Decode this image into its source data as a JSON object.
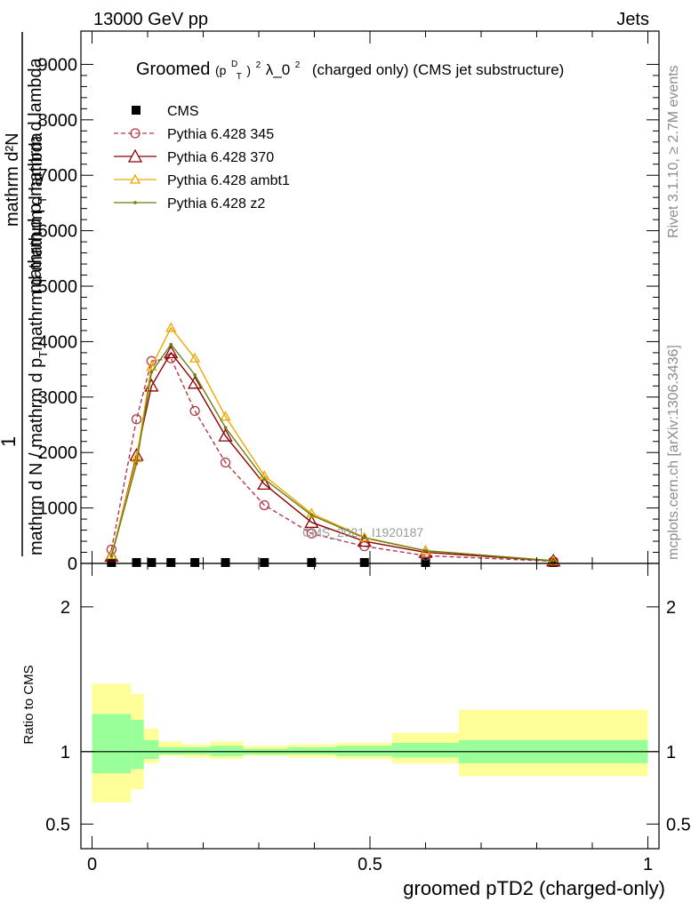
{
  "header": {
    "left": "13000 GeV pp",
    "right": "Jets"
  },
  "side_text": {
    "rivet": "Rivet 3.1.10, ≥ 2.7M events",
    "mcplots": "mcplots.cern.ch [arXiv:1306.3436]"
  },
  "watermark": "CMS_2021_I1920187",
  "chart_data": [
    {
      "type": "line",
      "title_parts": {
        "prefix": "Groomed",
        "paren_open": "(p",
        "sup_d": "D",
        "sub_t": "T",
        "paren_close": ")",
        "sup_2": "2",
        "lambda": "λ_0",
        "sup_2b": "2",
        "suffix": "(charged only) (CMS jet substructure)"
      },
      "ylabel_parts": {
        "one": "1",
        "denominator": "mathrm d N / mathrm d p",
        "denominator_sub": "T",
        "denominator_rest": "mathrm d mathrm d lambda",
        "numerator": "mathrm d²N",
        "numerator_rest": "mathrm d p",
        "numerator_sub": "T",
        "numerator_tail": "mathrm d lambda"
      },
      "xlim": [
        -0.02,
        1.02
      ],
      "ylim": [
        0,
        9600
      ],
      "yticks": [
        {
          "v": 0,
          "label": "0"
        },
        {
          "v": 1000,
          "label": "1000"
        },
        {
          "v": 2000,
          "label": "2000"
        },
        {
          "v": 3000,
          "label": "3000"
        },
        {
          "v": 4000,
          "label": "4000"
        },
        {
          "v": 5000,
          "label": "5000"
        },
        {
          "v": 6000,
          "label": "6000"
        },
        {
          "v": 7000,
          "label": "7000"
        },
        {
          "v": 8000,
          "label": "8000"
        },
        {
          "v": 9000,
          "label": "9000"
        }
      ],
      "x": [
        0.035,
        0.08,
        0.107,
        0.142,
        0.185,
        0.24,
        0.31,
        0.395,
        0.49,
        0.6,
        0.83
      ],
      "series": [
        {
          "name": "CMS",
          "color": "#000000",
          "marker": "square",
          "values": [
            0.3,
            0.3,
            0.3,
            0.3,
            0.3,
            0.3,
            0.3,
            0.3,
            0.3,
            0.3,
            0.3
          ]
        },
        {
          "name": "Pythia 6.428 345",
          "color": "#b03a48",
          "marker": "circle-open",
          "dashed": true,
          "values": [
            250,
            2600,
            3650,
            3700,
            2750,
            1820,
            1050,
            540,
            310,
            140,
            40
          ]
        },
        {
          "name": "Pythia 6.428 370",
          "color": "#8b0000",
          "marker": "triangle-open",
          "dashed": false,
          "values": [
            130,
            1950,
            3200,
            3800,
            3250,
            2300,
            1430,
            740,
            400,
            200,
            45
          ]
        },
        {
          "name": "Pythia 6.428 ambt1",
          "color": "#f0a500",
          "marker": "triangle-open",
          "dashed": false,
          "values": [
            150,
            1900,
            3550,
            4250,
            3700,
            2650,
            1580,
            900,
            470,
            230,
            48
          ]
        },
        {
          "name": "Pythia 6.428 z2",
          "color": "#6b7d12",
          "marker": "dot",
          "dashed": false,
          "values": [
            130,
            1800,
            3450,
            3950,
            3400,
            2450,
            1520,
            870,
            460,
            230,
            48
          ]
        }
      ]
    },
    {
      "type": "area",
      "ylabel": "Ratio to CMS",
      "xlabel": "groomed pTD2 (charged-only)",
      "xlim": [
        -0.02,
        1.02
      ],
      "ylim": [
        0.33,
        2.3
      ],
      "reference_line": 1,
      "xticks": [
        {
          "v": 0,
          "label": "0"
        },
        {
          "v": 0.5,
          "label": "0.5"
        },
        {
          "v": 1,
          "label": "1"
        }
      ],
      "yticks": [
        {
          "v": 0.5,
          "label": "0.5"
        },
        {
          "v": 1,
          "label": "1"
        },
        {
          "v": 2,
          "label": "2"
        }
      ],
      "bands": [
        {
          "x0": 0.0,
          "x1": 0.07,
          "inner": [
            0.85,
            1.26
          ],
          "outer": [
            0.65,
            1.47
          ]
        },
        {
          "x0": 0.07,
          "x1": 0.093,
          "inner": [
            0.88,
            1.22
          ],
          "outer": [
            0.74,
            1.4
          ]
        },
        {
          "x0": 0.093,
          "x1": 0.12,
          "inner": [
            0.95,
            1.08
          ],
          "outer": [
            0.92,
            1.16
          ]
        },
        {
          "x0": 0.12,
          "x1": 0.163,
          "inner": [
            0.98,
            1.03
          ],
          "outer": [
            0.97,
            1.07
          ]
        },
        {
          "x0": 0.163,
          "x1": 0.213,
          "inner": [
            0.98,
            1.03
          ],
          "outer": [
            0.96,
            1.05
          ]
        },
        {
          "x0": 0.213,
          "x1": 0.272,
          "inner": [
            0.97,
            1.04
          ],
          "outer": [
            0.95,
            1.07
          ]
        },
        {
          "x0": 0.272,
          "x1": 0.352,
          "inner": [
            0.98,
            1.02
          ],
          "outer": [
            0.97,
            1.04
          ]
        },
        {
          "x0": 0.352,
          "x1": 0.44,
          "inner": [
            0.98,
            1.03
          ],
          "outer": [
            0.96,
            1.05
          ]
        },
        {
          "x0": 0.44,
          "x1": 0.54,
          "inner": [
            0.97,
            1.04
          ],
          "outer": [
            0.95,
            1.06
          ]
        },
        {
          "x0": 0.54,
          "x1": 0.66,
          "inner": [
            0.96,
            1.06
          ],
          "outer": [
            0.92,
            1.13
          ]
        },
        {
          "x0": 0.66,
          "x1": 1.0,
          "inner": [
            0.92,
            1.08
          ],
          "outer": [
            0.83,
            1.29
          ]
        }
      ],
      "band_colors": {
        "inner": "#99ff99",
        "outer": "#ffff99"
      }
    }
  ]
}
